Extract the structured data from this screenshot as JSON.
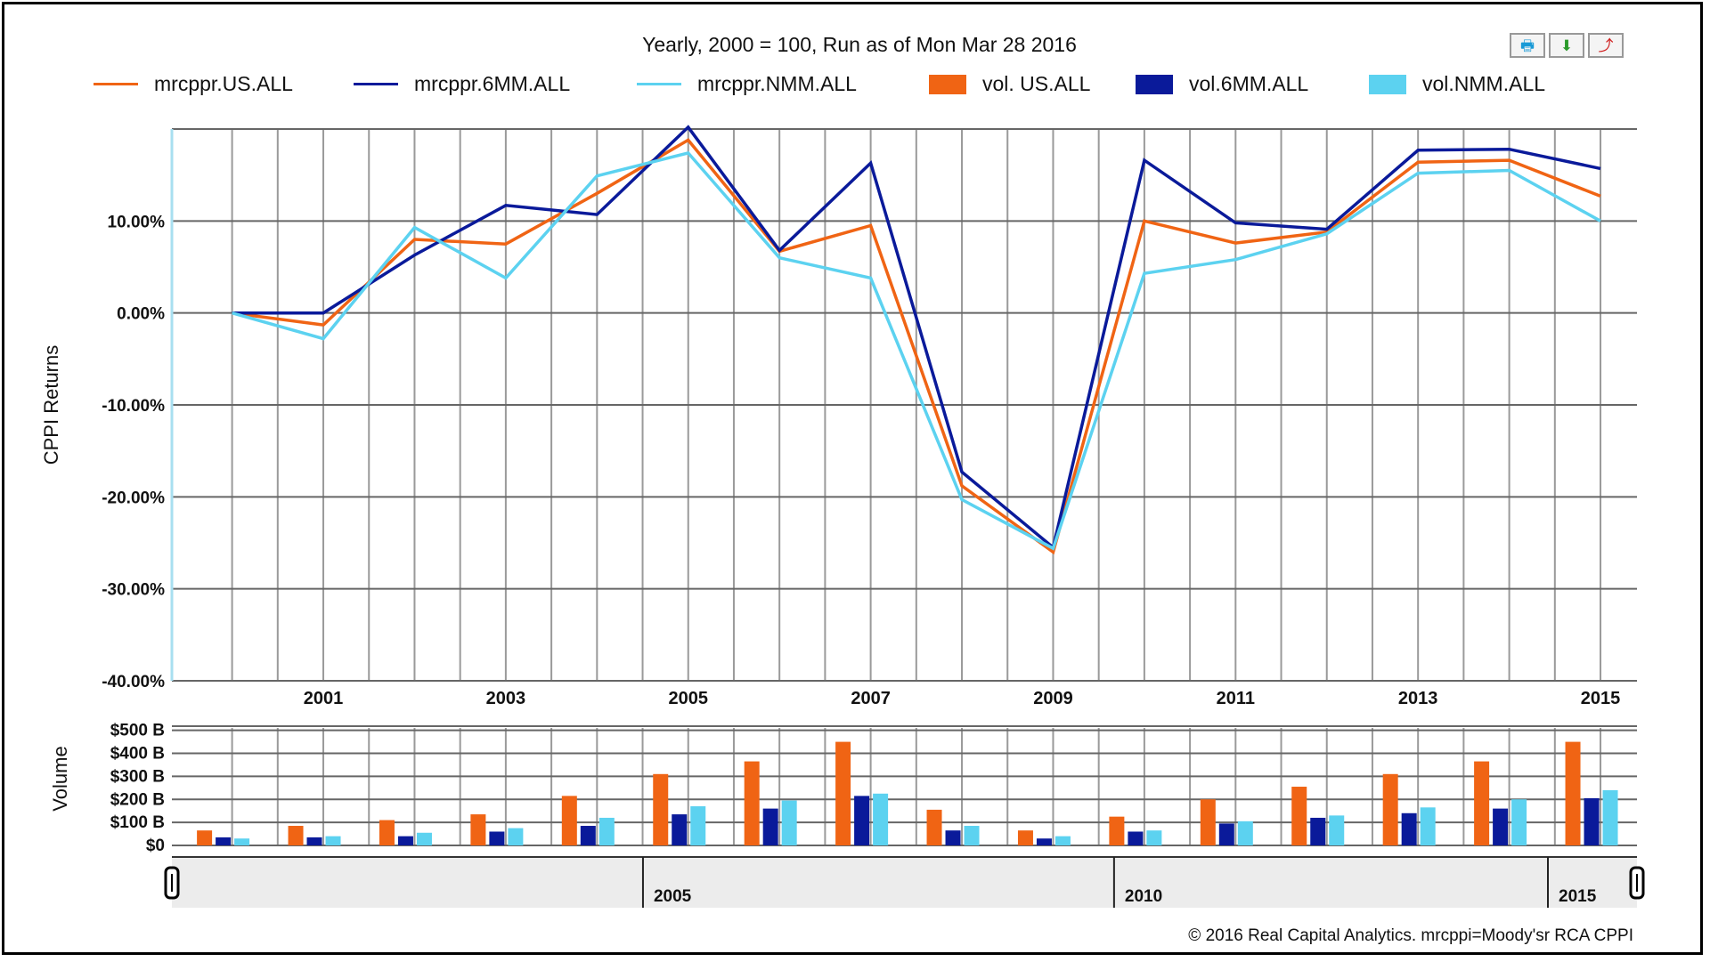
{
  "header": {
    "title": "Yearly, 2000 = 100, Run as of Mon Mar 28 2016",
    "toolbar": [
      {
        "name": "print-icon",
        "label": "🖶"
      },
      {
        "name": "download-icon",
        "label": "⬇"
      },
      {
        "name": "pdf-icon",
        "label": "⤴"
      }
    ]
  },
  "colors": {
    "us": "#f06414",
    "six_mm": "#0a1a9a",
    "nmm": "#5cd2f0"
  },
  "legend": [
    {
      "label": "mrcppr.US.ALL",
      "kind": "line",
      "color": "#f06414"
    },
    {
      "label": "mrcppr.6MM.ALL",
      "kind": "line",
      "color": "#0a1a9a"
    },
    {
      "label": "mrcppr.NMM.ALL",
      "kind": "line",
      "color": "#5cd2f0"
    },
    {
      "label": "vol. US.ALL",
      "kind": "bar",
      "color": "#f06414"
    },
    {
      "label": "vol.6MM.ALL",
      "kind": "bar",
      "color": "#0a1a9a"
    },
    {
      "label": "vol.NMM.ALL",
      "kind": "bar",
      "color": "#5cd2f0"
    }
  ],
  "footer": "© 2016 Real Capital Analytics. mrcppi=Moody'sr RCA CPPI",
  "chart_data": [
    {
      "type": "line",
      "ylabel": "CPPI Returns",
      "ylim": [
        -40,
        20
      ],
      "yticks": [
        10,
        0,
        -10,
        -20,
        -30,
        -40
      ],
      "ytick_labels": [
        "10.00%",
        "0.00%",
        "-10.00%",
        "-20.00%",
        "-30.00%",
        "-40.00%"
      ],
      "x": [
        2000,
        2001,
        2002,
        2003,
        2004,
        2005,
        2006,
        2007,
        2008,
        2009,
        2010,
        2011,
        2012,
        2013,
        2014,
        2015
      ],
      "xtick_labels": [
        "2001",
        "2003",
        "2005",
        "2007",
        "2009",
        "2011",
        "2013",
        "2015"
      ],
      "grid": true,
      "series": [
        {
          "name": "mrcppr.US.ALL",
          "color": "#f06414",
          "values": [
            0.0,
            -1.3,
            8.0,
            7.5,
            13.0,
            18.8,
            6.7,
            9.5,
            -18.8,
            -26.0,
            10.0,
            7.6,
            8.8,
            16.4,
            16.6,
            12.7
          ]
        },
        {
          "name": "mrcppr.6MM.ALL",
          "color": "#0a1a9a",
          "values": [
            0.0,
            0.0,
            6.3,
            11.7,
            10.7,
            20.2,
            6.8,
            16.3,
            -17.3,
            -25.5,
            16.6,
            9.8,
            9.1,
            17.7,
            17.8,
            15.7
          ]
        },
        {
          "name": "mrcppr.NMM.ALL",
          "color": "#5cd2f0",
          "values": [
            0.0,
            -2.8,
            9.3,
            3.8,
            14.9,
            17.4,
            6.0,
            3.8,
            -20.3,
            -25.6,
            4.3,
            5.8,
            8.6,
            15.2,
            15.5,
            10.0
          ]
        }
      ]
    },
    {
      "type": "bar",
      "ylabel": "Volume",
      "ylim": [
        0,
        500
      ],
      "yticks": [
        0,
        100,
        200,
        300,
        400,
        500
      ],
      "ytick_labels": [
        "$0",
        "$100 B",
        "$200 B",
        "$300 B",
        "$400 B",
        "$500 B"
      ],
      "x": [
        2000,
        2001,
        2002,
        2003,
        2004,
        2005,
        2006,
        2007,
        2008,
        2009,
        2010,
        2011,
        2012,
        2013,
        2014,
        2015
      ],
      "series": [
        {
          "name": "vol. US.ALL",
          "color": "#f06414",
          "values": [
            65,
            85,
            110,
            135,
            215,
            310,
            365,
            450,
            155,
            65,
            125,
            200,
            255,
            310,
            365,
            450
          ]
        },
        {
          "name": "vol.6MM.ALL",
          "color": "#0a1a9a",
          "values": [
            35,
            35,
            40,
            60,
            85,
            135,
            160,
            215,
            65,
            30,
            60,
            95,
            120,
            140,
            160,
            205
          ]
        },
        {
          "name": "vol.NMM.ALL",
          "color": "#5cd2f0",
          "values": [
            30,
            40,
            55,
            75,
            120,
            170,
            195,
            225,
            85,
            40,
            65,
            105,
            130,
            165,
            200,
            240
          ]
        }
      ]
    },
    {
      "type": "area",
      "name": "navigator",
      "range": [
        2000,
        2015
      ],
      "tick_labels": [
        "2005",
        "2010",
        "2015"
      ]
    }
  ]
}
